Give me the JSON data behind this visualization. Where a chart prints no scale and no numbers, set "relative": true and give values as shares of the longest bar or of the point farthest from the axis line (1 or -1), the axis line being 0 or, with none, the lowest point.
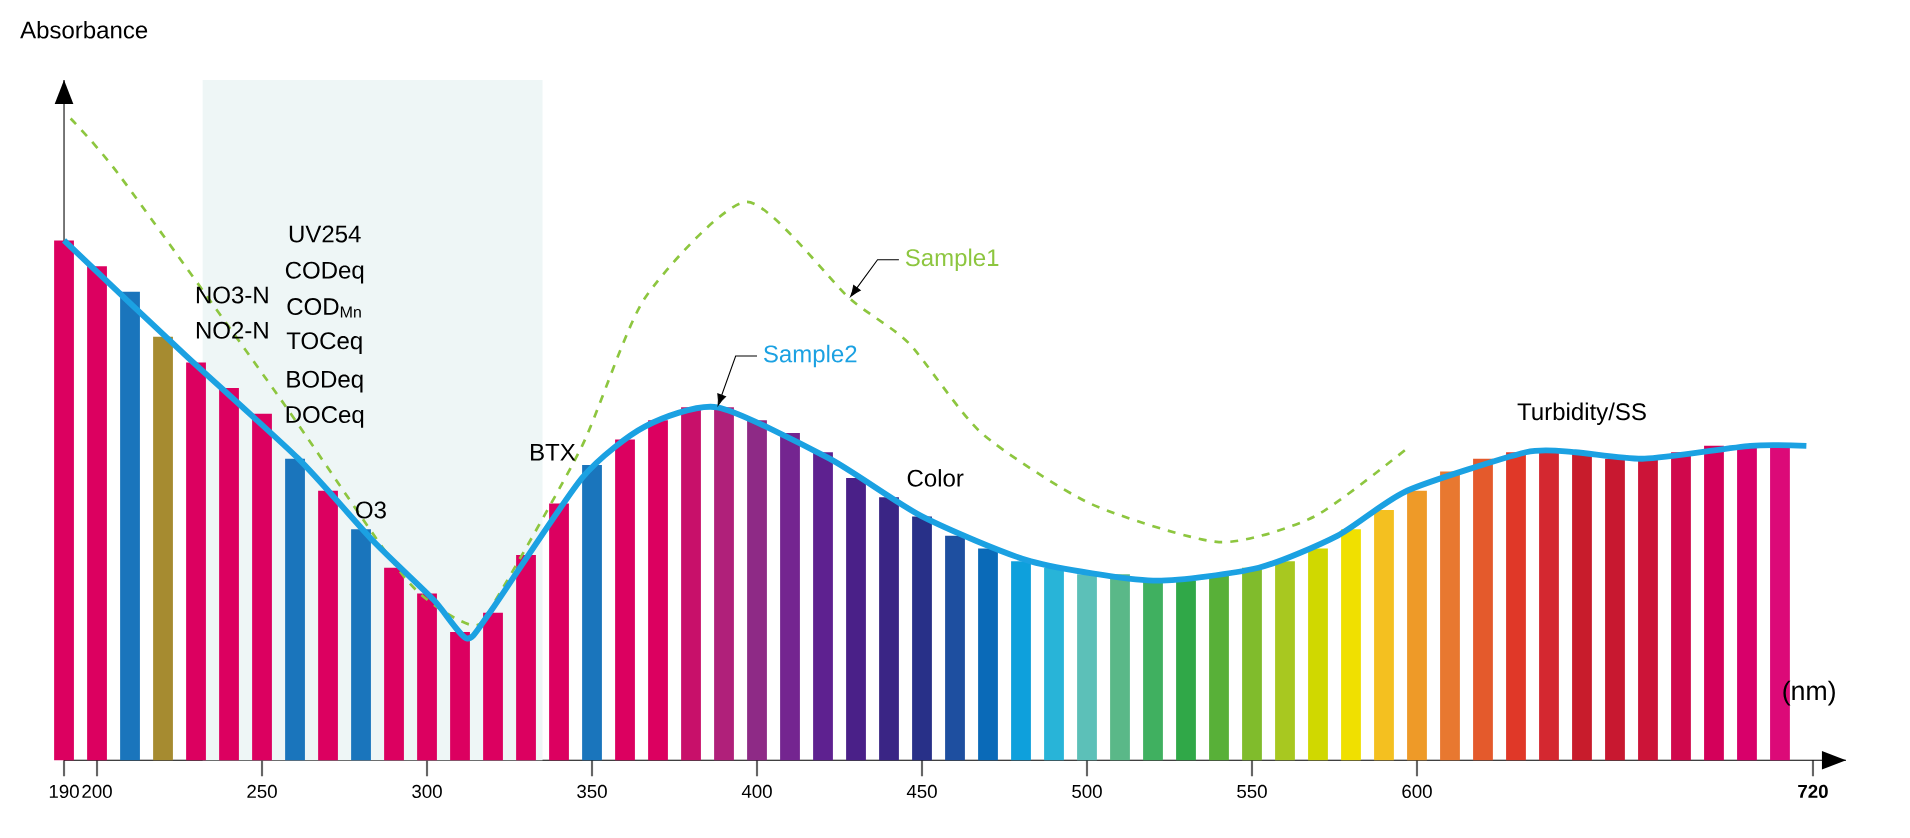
{
  "chart_data": {
    "type": "line",
    "relative": true,
    "xlabel": "(nm)",
    "ylabel": "Absorbance",
    "xlim": [
      190,
      730
    ],
    "xticks": [
      190,
      200,
      250,
      300,
      350,
      400,
      450,
      500,
      550,
      600,
      {
        "value": 720,
        "label": "**720**"
      }
    ],
    "bands": [
      {
        "axis": "x",
        "from": 232,
        "to": 335,
        "color": "#eef6f6"
      }
    ],
    "series": [
      {
        "type": "bar",
        "x": [
          190,
          200,
          210,
          220,
          230,
          240,
          250,
          260,
          270,
          280,
          290,
          300,
          310,
          320,
          330,
          340,
          350,
          360,
          370,
          380,
          390,
          400,
          410,
          420,
          430,
          440,
          450,
          460,
          470,
          480,
          490,
          500,
          510,
          520,
          530,
          540,
          550,
          560,
          570,
          580,
          590,
          600,
          610,
          620,
          630,
          640,
          650,
          660,
          670,
          680,
          690,
          700,
          710
        ],
        "values": [
          0.81,
          0.77,
          0.73,
          0.66,
          0.62,
          0.58,
          0.54,
          0.47,
          0.42,
          0.36,
          0.3,
          0.26,
          0.2,
          0.23,
          0.32,
          0.4,
          0.46,
          0.5,
          0.53,
          0.55,
          0.55,
          0.53,
          0.51,
          0.48,
          0.44,
          0.41,
          0.38,
          0.35,
          0.33,
          0.31,
          0.3,
          0.29,
          0.29,
          0.28,
          0.28,
          0.29,
          0.3,
          0.31,
          0.33,
          0.36,
          0.39,
          0.42,
          0.45,
          0.47,
          0.48,
          0.48,
          0.48,
          0.47,
          0.47,
          0.48,
          0.49,
          0.49,
          0.49
        ],
        "colors": [
          "#dc0060",
          "#dc0060",
          "#1a75bc",
          "#a68b30",
          "#dc0060",
          "#dc0060",
          "#dc0060",
          "#1a75bc",
          "#dc0060",
          "#1a75bc",
          "#dc0060",
          "#dc0060",
          "#dc0060",
          "#dc0060",
          "#dc0060",
          "#dc0060",
          "#1a75bc",
          "#dc0060",
          "#dc0060",
          "#c8106a",
          "#b0207a",
          "#8e2a86",
          "#742590",
          "#5e2190",
          "#4a2088",
          "#3a2585",
          "#283088",
          "#1e4fa0",
          "#0a6ab8",
          "#0ea0dc",
          "#28b4d8",
          "#5cc0b8",
          "#5ab888",
          "#40b060",
          "#30a848",
          "#58b038",
          "#80bc2c",
          "#a8c820",
          "#d0d800",
          "#f0e000",
          "#f4c020",
          "#ee9a28",
          "#e87830",
          "#e45a2c",
          "#e03828",
          "#d42830",
          "#c81c2c",
          "#c81830",
          "#cc1438",
          "#d0084c",
          "#d4005a",
          "#d8006a",
          "#dc0a78"
        ]
      },
      {
        "name": "Sample1",
        "color": "#8dc63f",
        "line_style": "dashed",
        "x": [
          192,
          207,
          256,
          294,
          314,
          322,
          347,
          366,
          397,
          428,
          446,
          468,
          501,
          540,
          569,
          598
        ],
        "values": [
          1.0,
          0.91,
          0.56,
          0.28,
          0.21,
          0.26,
          0.49,
          0.72,
          0.87,
          0.72,
          0.65,
          0.51,
          0.4,
          0.34,
          0.38,
          0.49
        ]
      },
      {
        "name": "Sample2",
        "color": "#1ba1e2",
        "line_style": "solid",
        "x": [
          190,
          227,
          261,
          284,
          302,
          312,
          319,
          347,
          366,
          388,
          422,
          450,
          483,
          520,
          552,
          576,
          597,
          633,
          648,
          669,
          701,
          718
        ],
        "values": [
          0.81,
          0.63,
          0.47,
          0.34,
          0.25,
          0.19,
          0.23,
          0.44,
          0.52,
          0.55,
          0.47,
          0.38,
          0.31,
          0.28,
          0.3,
          0.35,
          0.42,
          0.48,
          0.48,
          0.47,
          0.49,
          0.49
        ]
      }
    ],
    "annotations": [
      "UV254",
      "CODeq",
      "COD$_{Mn}$",
      "TOCeq",
      "BODeq",
      "DOCeq",
      "NO3-N",
      "NO2-N",
      "O3",
      "BTX",
      "Color",
      "Turbidity/SS"
    ]
  }
}
